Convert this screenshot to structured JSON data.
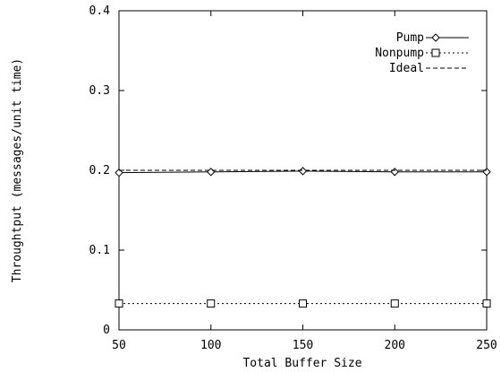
{
  "chart_data": {
    "type": "line",
    "title": "",
    "xlabel": "Total Buffer Size",
    "ylabel": "Throughtput (messages/unit time)",
    "xlim": [
      50,
      250
    ],
    "ylim": [
      0,
      0.4
    ],
    "x_ticks": [
      50,
      100,
      150,
      200,
      250
    ],
    "x_tick_labels": [
      "50",
      "100",
      "150",
      "200",
      "250"
    ],
    "y_ticks": [
      0,
      0.1,
      0.2,
      0.3,
      0.4
    ],
    "y_tick_labels": [
      "0",
      "0.1",
      "0.2",
      "0.3",
      "0.4"
    ],
    "grid": false,
    "legend_position": "top-right",
    "series": [
      {
        "name": "Pump",
        "x": [
          50,
          100,
          150,
          200,
          250
        ],
        "y": [
          0.197,
          0.198,
          0.199,
          0.198,
          0.198
        ],
        "marker": "diamond",
        "line_style": "solid"
      },
      {
        "name": "Nonpump",
        "x": [
          50,
          100,
          150,
          200,
          250
        ],
        "y": [
          0.033,
          0.033,
          0.033,
          0.033,
          0.033
        ],
        "marker": "square",
        "line_style": "dotted"
      },
      {
        "name": "Ideal",
        "x": [
          50,
          100,
          150,
          200,
          250
        ],
        "y": [
          0.2,
          0.2,
          0.2,
          0.2,
          0.2
        ],
        "marker": "none",
        "line_style": "dashed"
      }
    ]
  }
}
